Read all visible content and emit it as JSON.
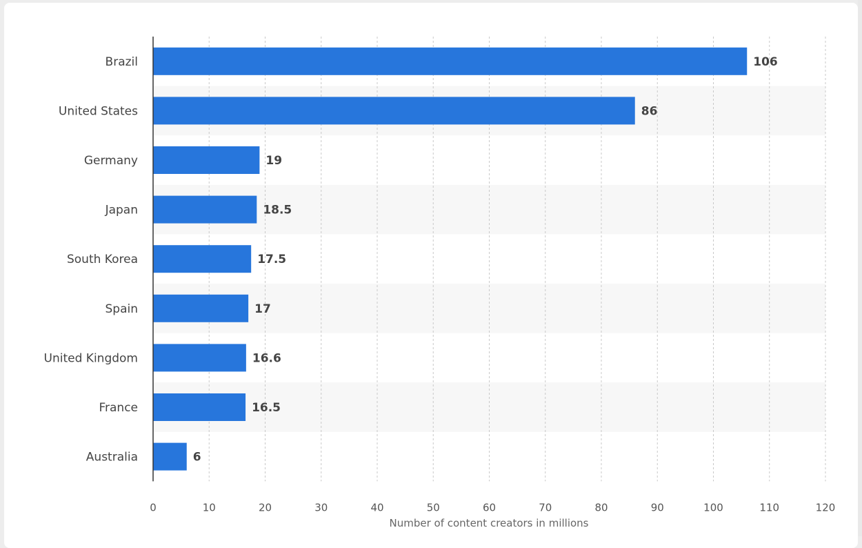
{
  "chart_data": {
    "type": "bar",
    "orientation": "horizontal",
    "categories": [
      "Brazil",
      "United States",
      "Germany",
      "Japan",
      "South Korea",
      "Spain",
      "United Kingdom",
      "France",
      "Australia"
    ],
    "values": [
      106,
      86,
      19,
      18.5,
      17.5,
      17,
      16.6,
      16.5,
      6
    ],
    "value_labels": [
      "106",
      "86",
      "19",
      "18.5",
      "17.5",
      "17",
      "16.6",
      "16.5",
      "6"
    ],
    "xlabel": "Number of content creators in millions",
    "ylabel": "",
    "xlim": [
      0,
      120
    ],
    "xticks": [
      0,
      10,
      20,
      30,
      40,
      50,
      60,
      70,
      80,
      90,
      100,
      110,
      120
    ],
    "grid": "vertical dashed",
    "bar_color": "#2776dc",
    "band_color": "#f7f7f7"
  }
}
